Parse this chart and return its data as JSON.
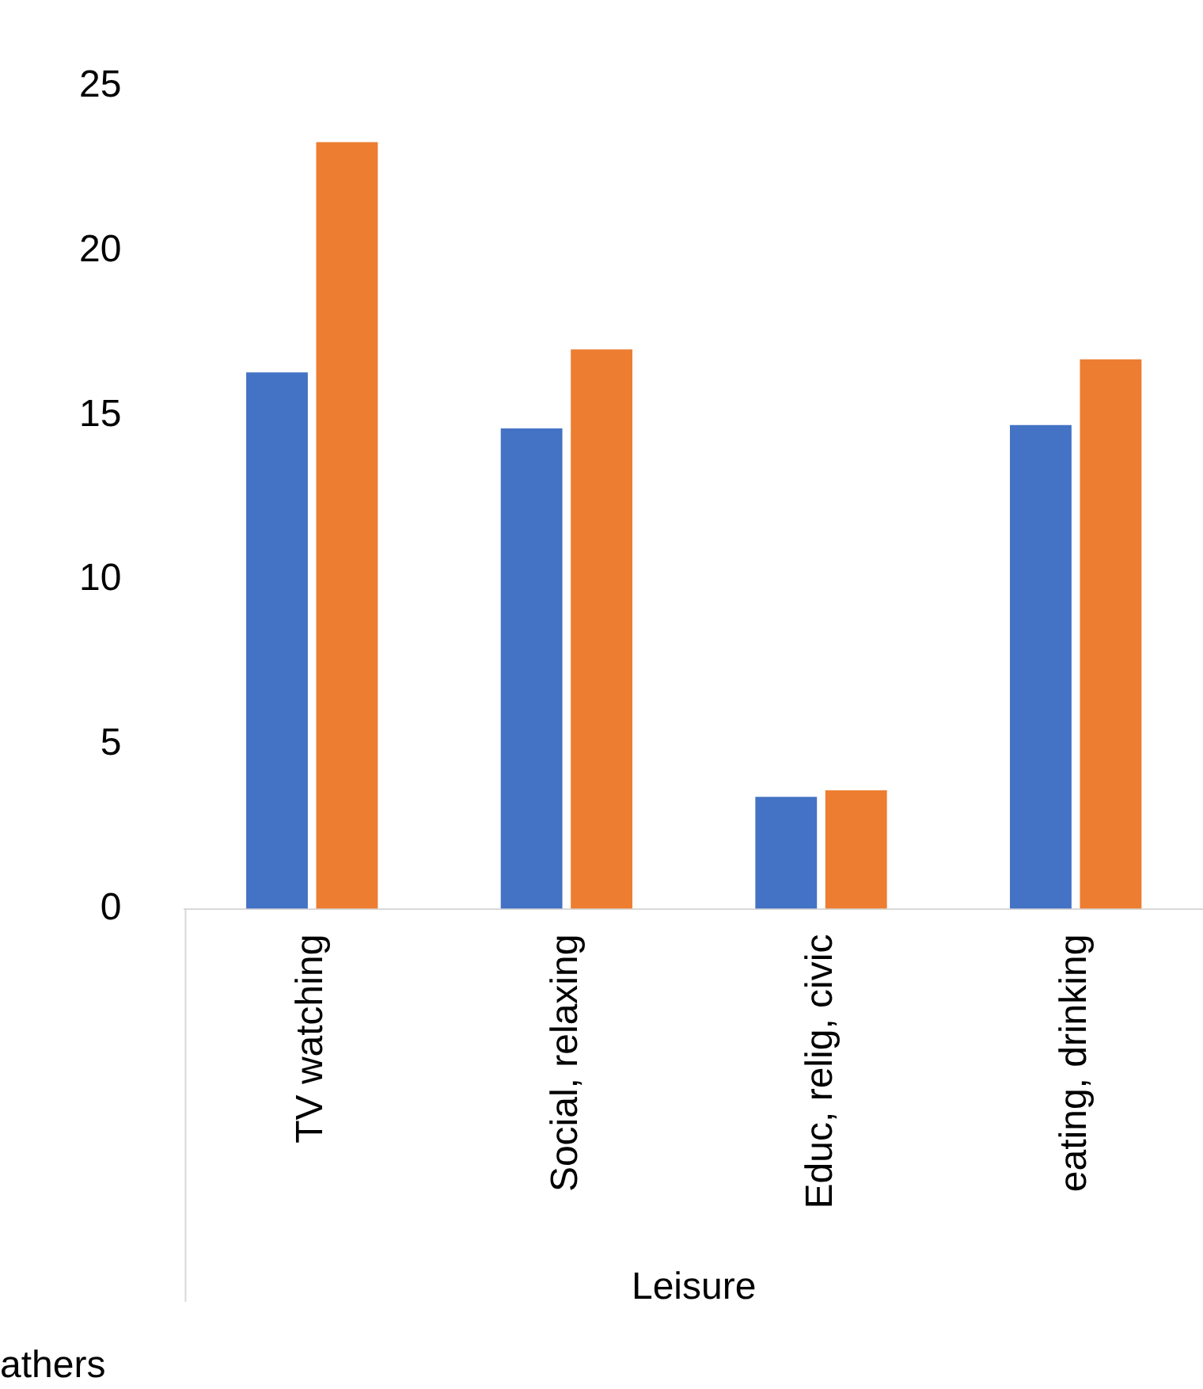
{
  "chart_data": {
    "type": "bar",
    "categories": [
      "TV watching",
      "Social, relaxing",
      "Educ, relig, civic",
      "eating, drinking"
    ],
    "xlabel": "Leisure",
    "series": [
      {
        "color": "#4472c4",
        "values": [
          16.3,
          14.6,
          3.4,
          14.7
        ]
      },
      {
        "color": "#ed7d31",
        "values": [
          23.3,
          17.0,
          3.6,
          16.7
        ]
      }
    ],
    "ylim": [
      0,
      25
    ],
    "yticks": [
      0,
      5,
      10,
      15,
      20,
      25
    ],
    "grid": false,
    "legend": false,
    "annotations": [
      "athers"
    ]
  }
}
